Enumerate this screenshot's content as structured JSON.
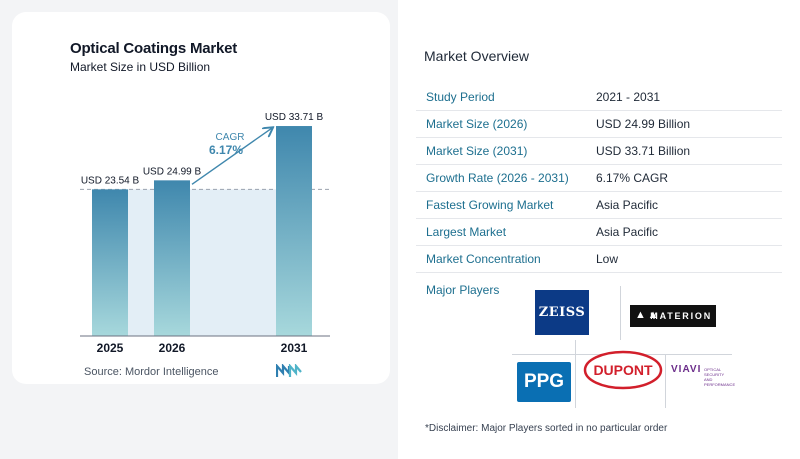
{
  "chart_data": {
    "type": "bar",
    "title": "Optical Coatings Market",
    "subtitle": "Market Size in USD Billion",
    "categories": [
      "2025",
      "2026",
      "2031"
    ],
    "values": [
      23.54,
      24.99,
      33.71
    ],
    "data_labels": [
      "USD 23.54 B",
      "USD 24.99 B",
      "USD 33.71 B"
    ],
    "cagr_label": "CAGR",
    "cagr_value": "6.17%",
    "ylim": [
      0,
      35
    ],
    "grid": false,
    "bar_colors": [
      "#3f87ad",
      "#a7d8dc"
    ]
  },
  "source": "Source:  Mordor Intelligence",
  "market_overview": {
    "title": "Market Overview",
    "rows": [
      {
        "label": "Study Period",
        "value": "2021 - 2031"
      },
      {
        "label": "Market Size (2026)",
        "value": "USD 24.99 Billion"
      },
      {
        "label": "Market Size (2031)",
        "value": "USD 33.71 Billion"
      },
      {
        "label": "Growth Rate (2026 - 2031)",
        "value": "6.17% CAGR"
      },
      {
        "label": "Fastest Growing Market",
        "value": "Asia Pacific"
      },
      {
        "label": "Largest Market",
        "value": "Asia Pacific"
      },
      {
        "label": "Market Concentration",
        "value": "Low"
      }
    ]
  },
  "major_players": {
    "title": "Major Players",
    "logos": [
      "ZEISS",
      "MATERION",
      "PPG",
      "DUPONT",
      "VIAVI"
    ],
    "viavi_tagline": "OPTICAL SECURITY AND PERFORMANCE"
  },
  "disclaimer": "*Disclaimer: Major Players sorted in no particular order"
}
